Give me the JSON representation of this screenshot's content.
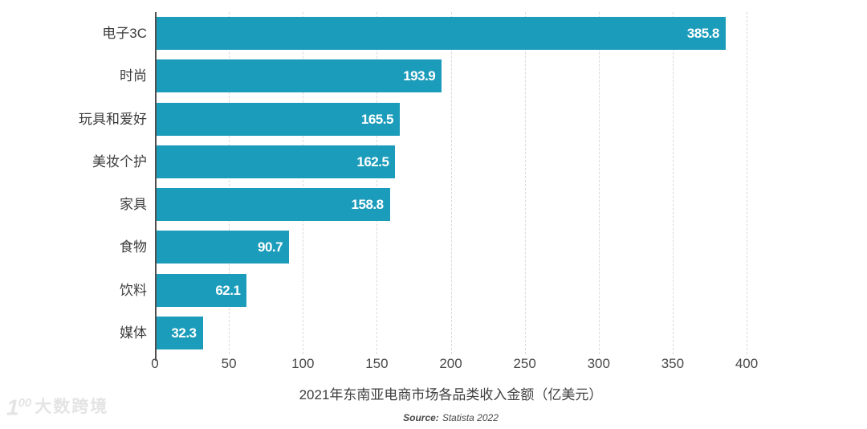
{
  "chart_data": {
    "type": "bar",
    "orientation": "horizontal",
    "categories": [
      "电子3C",
      "时尚",
      "玩具和爱好",
      "美妆个护",
      "家具",
      "食物",
      "饮料",
      "媒体"
    ],
    "values": [
      385.8,
      193.9,
      165.5,
      162.5,
      158.8,
      90.7,
      62.1,
      32.3
    ],
    "value_labels": [
      "385.8",
      "193.9",
      "165.5",
      "162.5",
      "158.8",
      "90.7",
      "62.1",
      "32.3"
    ],
    "title": "2021年东南亚电商市场各品类收入金额（亿美元）",
    "xlabel": "",
    "ylabel": "",
    "xlim": [
      0,
      400
    ],
    "x_ticks": [
      0,
      50,
      100,
      150,
      200,
      250,
      300,
      350,
      400
    ],
    "grid": "vertical dashed gridlines at every x tick",
    "legend": "none",
    "bar_color": "#1b9cba",
    "value_label_color": "#ffffff"
  },
  "source": {
    "label": "Source:",
    "text": "Statista 2022"
  },
  "watermark": {
    "logo": "100",
    "text": "大数跨境"
  }
}
